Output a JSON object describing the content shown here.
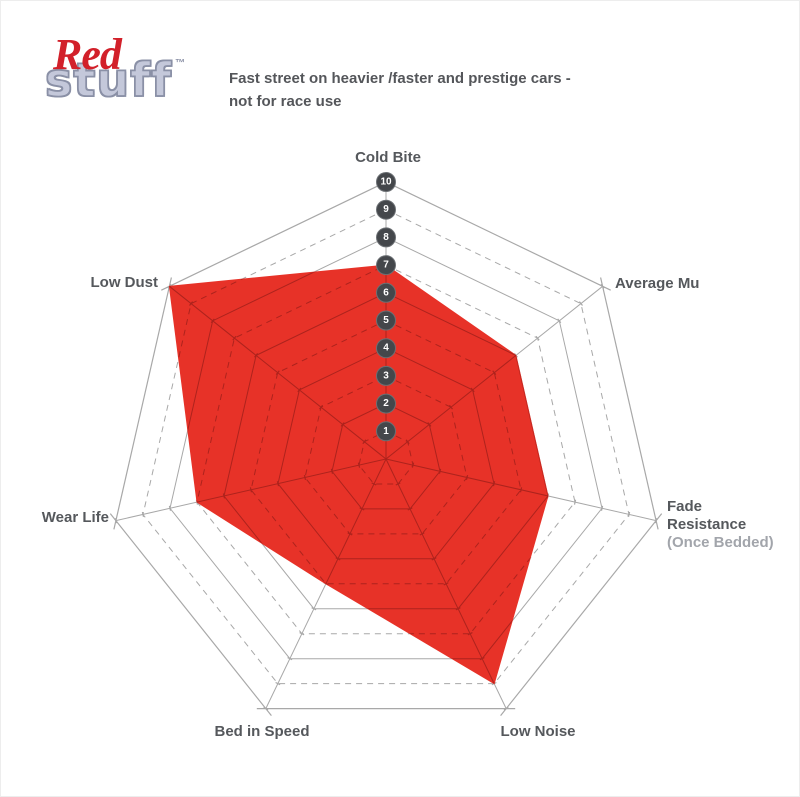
{
  "logo": {
    "red": "Red",
    "stuff": "stuff",
    "tm": "™",
    "red_color": "#d2202a",
    "stuff_fill": "#c4c8da",
    "stuff_outline": "#8a90a6"
  },
  "header": {
    "line1": "Fast street on heavier /faster and prestige cars -",
    "line2": "not for race use"
  },
  "chart_data": {
    "type": "radar",
    "title": "RedStuff brake pad performance",
    "categories": [
      "Cold Bite",
      "Average Mu",
      "Fade Resistance (Once Bedded)",
      "Low Noise",
      "Bed in Speed",
      "Wear Life",
      "Low Dust"
    ],
    "values": [
      7,
      6,
      6,
      9,
      5,
      7,
      10
    ],
    "series": [
      {
        "name": "RedStuff",
        "values": [
          7,
          6,
          6,
          9,
          5,
          7,
          10
        ]
      }
    ],
    "axis_label_lines": [
      [
        "Cold Bite"
      ],
      [
        "Average Mu"
      ],
      [
        "Fade",
        "Resistance",
        "(Once Bedded)"
      ],
      [
        "Low Noise"
      ],
      [
        "Bed in Speed"
      ],
      [
        "Wear Life"
      ],
      [
        "Low Dust"
      ]
    ],
    "scale": {
      "min": 1,
      "max": 10,
      "tick_labels": [
        "10",
        "9",
        "8",
        "7",
        "6",
        "5",
        "4",
        "3",
        "2",
        "1"
      ]
    },
    "grid": {
      "shape": "heptagon",
      "rings": 10,
      "ring_style": "even rings solid, odd rings dashed",
      "legend": "none"
    },
    "colors": {
      "fill": "#e73228",
      "grid_inside_fill": "#ad231d",
      "grid": "#a8a8a8",
      "grid_outer": "#8f8f8f",
      "badge": "#44474b",
      "badge_rim": "#6c7074",
      "badge_text": "#ffffff",
      "label": "#55585c",
      "label_muted": "#a2a5ab"
    }
  }
}
